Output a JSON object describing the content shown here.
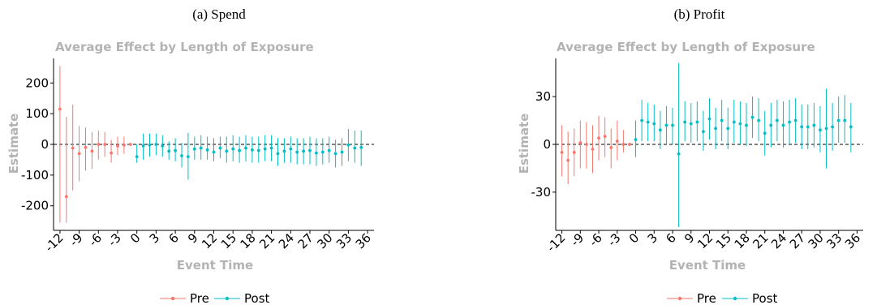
{
  "chart_data": [
    {
      "type": "scatter",
      "caption": "(a) Spend",
      "title": "Average Effect by Length of Exposure",
      "xlabel": "Event Time",
      "ylabel": "Estimate",
      "xlim": [
        -13,
        37
      ],
      "ylim": [
        -280,
        280
      ],
      "yticks": [
        200,
        100,
        0,
        -100,
        -200
      ],
      "xticks": [
        -12,
        -9,
        -6,
        -3,
        0,
        3,
        6,
        9,
        12,
        15,
        18,
        21,
        24,
        27,
        30,
        33,
        36
      ],
      "grid": false,
      "zero_line": "dashed",
      "legend": {
        "position": "bottom",
        "entries": [
          "Pre",
          "Post"
        ]
      },
      "series": [
        {
          "name": "Pre",
          "color": "#F8766D",
          "points": [
            {
              "x": -12,
              "y": 115,
              "lo": -255,
              "hi": 255
            },
            {
              "x": -11,
              "y": -170,
              "lo": -255,
              "hi": 90
            },
            {
              "x": -10,
              "y": -12,
              "lo": -150,
              "hi": 130
            },
            {
              "x": -9,
              "y": -30,
              "lo": -120,
              "hi": 60
            },
            {
              "x": -8,
              "y": -10,
              "lo": -85,
              "hi": 55
            },
            {
              "x": -7,
              "y": -22,
              "lo": -80,
              "hi": 40
            },
            {
              "x": -6,
              "y": 0,
              "lo": -50,
              "hi": 45
            },
            {
              "x": -5,
              "y": 0,
              "lo": -40,
              "hi": 40
            },
            {
              "x": -4,
              "y": -28,
              "lo": -60,
              "hi": 15
            },
            {
              "x": -3,
              "y": -5,
              "lo": -35,
              "hi": 25
            },
            {
              "x": -2,
              "y": -2,
              "lo": -30,
              "hi": 25
            },
            {
              "x": -1,
              "y": 0,
              "lo": -4,
              "hi": 4
            }
          ]
        },
        {
          "name": "Post",
          "color": "#00BFC4",
          "points": [
            {
              "x": 0,
              "y": -40,
              "lo": -60,
              "hi": 0
            },
            {
              "x": 1,
              "y": -5,
              "lo": -50,
              "hi": 35
            },
            {
              "x": 2,
              "y": -2,
              "lo": -40,
              "hi": 35
            },
            {
              "x": 3,
              "y": 0,
              "lo": -35,
              "hi": 35
            },
            {
              "x": 4,
              "y": -5,
              "lo": -40,
              "hi": 30
            },
            {
              "x": 5,
              "y": -22,
              "lo": -50,
              "hi": 10
            },
            {
              "x": 6,
              "y": -20,
              "lo": -55,
              "hi": 20
            },
            {
              "x": 7,
              "y": -37,
              "lo": -75,
              "hi": 5
            },
            {
              "x": 8,
              "y": -40,
              "lo": -115,
              "hi": 38
            },
            {
              "x": 9,
              "y": -15,
              "lo": -50,
              "hi": 25
            },
            {
              "x": 10,
              "y": -12,
              "lo": -50,
              "hi": 30
            },
            {
              "x": 11,
              "y": -18,
              "lo": -50,
              "hi": 25
            },
            {
              "x": 12,
              "y": -25,
              "lo": -55,
              "hi": 20
            },
            {
              "x": 13,
              "y": -12,
              "lo": -45,
              "hi": 25
            },
            {
              "x": 14,
              "y": -22,
              "lo": -60,
              "hi": 25
            },
            {
              "x": 15,
              "y": -15,
              "lo": -55,
              "hi": 30
            },
            {
              "x": 16,
              "y": -20,
              "lo": -60,
              "hi": 25
            },
            {
              "x": 17,
              "y": -12,
              "lo": -55,
              "hi": 30
            },
            {
              "x": 18,
              "y": -18,
              "lo": -60,
              "hi": 25
            },
            {
              "x": 19,
              "y": -20,
              "lo": -60,
              "hi": 25
            },
            {
              "x": 20,
              "y": -15,
              "lo": -55,
              "hi": 30
            },
            {
              "x": 21,
              "y": -12,
              "lo": -55,
              "hi": 30
            },
            {
              "x": 22,
              "y": -30,
              "lo": -70,
              "hi": 20
            },
            {
              "x": 23,
              "y": -22,
              "lo": -60,
              "hi": 20
            },
            {
              "x": 24,
              "y": -15,
              "lo": -60,
              "hi": 25
            },
            {
              "x": 25,
              "y": -25,
              "lo": -65,
              "hi": 20
            },
            {
              "x": 26,
              "y": -22,
              "lo": -65,
              "hi": 20
            },
            {
              "x": 27,
              "y": -20,
              "lo": -65,
              "hi": 25
            },
            {
              "x": 28,
              "y": -28,
              "lo": -70,
              "hi": 20
            },
            {
              "x": 29,
              "y": -25,
              "lo": -65,
              "hi": 20
            },
            {
              "x": 30,
              "y": -20,
              "lo": -60,
              "hi": 25
            },
            {
              "x": 31,
              "y": -30,
              "lo": -75,
              "hi": 15
            },
            {
              "x": 32,
              "y": -25,
              "lo": -70,
              "hi": 20
            },
            {
              "x": 33,
              "y": -2,
              "lo": -55,
              "hi": 50
            },
            {
              "x": 34,
              "y": -12,
              "lo": -60,
              "hi": 45
            },
            {
              "x": 35,
              "y": -10,
              "lo": -70,
              "hi": 45
            }
          ]
        }
      ]
    },
    {
      "type": "scatter",
      "caption": "(b) Profit",
      "title": "Average Effect by Length of Exposure",
      "xlabel": "Event Time",
      "ylabel": "Estimate",
      "xlim": [
        -13,
        37
      ],
      "ylim": [
        -54,
        54
      ],
      "yticks": [
        30,
        0,
        -30
      ],
      "xticks": [
        -12,
        -9,
        -6,
        -3,
        0,
        3,
        6,
        9,
        12,
        15,
        18,
        21,
        24,
        27,
        30,
        33,
        36
      ],
      "grid": false,
      "zero_line": "dashed",
      "legend": {
        "position": "bottom",
        "entries": [
          "Pre",
          "Post"
        ]
      },
      "series": [
        {
          "name": "Pre",
          "color": "#F8766D",
          "points": [
            {
              "x": -12,
              "y": -5,
              "lo": -20,
              "hi": 12
            },
            {
              "x": -11,
              "y": -10,
              "lo": -25,
              "hi": 8
            },
            {
              "x": -10,
              "y": -5,
              "lo": -20,
              "hi": 10
            },
            {
              "x": -9,
              "y": 1,
              "lo": -15,
              "hi": 15
            },
            {
              "x": -8,
              "y": 0,
              "lo": -15,
              "hi": 14
            },
            {
              "x": -7,
              "y": -3,
              "lo": -18,
              "hi": 12
            },
            {
              "x": -6,
              "y": 4,
              "lo": -10,
              "hi": 18
            },
            {
              "x": -5,
              "y": 5,
              "lo": -8,
              "hi": 17
            },
            {
              "x": -4,
              "y": -2,
              "lo": -15,
              "hi": 10
            },
            {
              "x": -3,
              "y": 2,
              "lo": -10,
              "hi": 15
            },
            {
              "x": -2,
              "y": 0,
              "lo": -5,
              "hi": 9
            },
            {
              "x": -1,
              "y": 0,
              "lo": -1,
              "hi": 1
            }
          ]
        },
        {
          "name": "Post",
          "color": "#00BFC4",
          "points": [
            {
              "x": 0,
              "y": 3,
              "lo": -8,
              "hi": 15
            },
            {
              "x": 1,
              "y": 15,
              "lo": 2,
              "hi": 28
            },
            {
              "x": 2,
              "y": 14,
              "lo": 2,
              "hi": 26
            },
            {
              "x": 3,
              "y": 13,
              "lo": 2,
              "hi": 25
            },
            {
              "x": 4,
              "y": 9,
              "lo": -3,
              "hi": 21
            },
            {
              "x": 5,
              "y": 12,
              "lo": 0,
              "hi": 24
            },
            {
              "x": 6,
              "y": 12,
              "lo": 0,
              "hi": 23
            },
            {
              "x": 7,
              "y": -6,
              "lo": -52,
              "hi": 51
            },
            {
              "x": 8,
              "y": 14,
              "lo": 2,
              "hi": 27
            },
            {
              "x": 9,
              "y": 13,
              "lo": 1,
              "hi": 26
            },
            {
              "x": 10,
              "y": 14,
              "lo": 2,
              "hi": 27
            },
            {
              "x": 11,
              "y": 8,
              "lo": -4,
              "hi": 21
            },
            {
              "x": 12,
              "y": 16,
              "lo": 3,
              "hi": 29
            },
            {
              "x": 13,
              "y": 10,
              "lo": -3,
              "hi": 23
            },
            {
              "x": 14,
              "y": 15,
              "lo": 2,
              "hi": 28
            },
            {
              "x": 15,
              "y": 10,
              "lo": -3,
              "hi": 23
            },
            {
              "x": 16,
              "y": 14,
              "lo": 1,
              "hi": 28
            },
            {
              "x": 17,
              "y": 13,
              "lo": 0,
              "hi": 27
            },
            {
              "x": 18,
              "y": 12,
              "lo": -1,
              "hi": 26
            },
            {
              "x": 19,
              "y": 17,
              "lo": 4,
              "hi": 30
            },
            {
              "x": 20,
              "y": 15,
              "lo": 2,
              "hi": 29
            },
            {
              "x": 21,
              "y": 7,
              "lo": -7,
              "hi": 21
            },
            {
              "x": 22,
              "y": 12,
              "lo": -2,
              "hi": 26
            },
            {
              "x": 23,
              "y": 15,
              "lo": 2,
              "hi": 28
            },
            {
              "x": 24,
              "y": 12,
              "lo": -2,
              "hi": 27
            },
            {
              "x": 25,
              "y": 14,
              "lo": 0,
              "hi": 28
            },
            {
              "x": 26,
              "y": 15,
              "lo": 1,
              "hi": 29
            },
            {
              "x": 27,
              "y": 11,
              "lo": -3,
              "hi": 25
            },
            {
              "x": 28,
              "y": 11,
              "lo": -3,
              "hi": 25
            },
            {
              "x": 29,
              "y": 12,
              "lo": -2,
              "hi": 26
            },
            {
              "x": 30,
              "y": 9,
              "lo": -5,
              "hi": 24
            },
            {
              "x": 31,
              "y": 10,
              "lo": -15,
              "hi": 35
            },
            {
              "x": 32,
              "y": 11,
              "lo": -4,
              "hi": 26
            },
            {
              "x": 33,
              "y": 15,
              "lo": 1,
              "hi": 30
            },
            {
              "x": 34,
              "y": 15,
              "lo": 1,
              "hi": 31
            },
            {
              "x": 35,
              "y": 11,
              "lo": -5,
              "hi": 26
            }
          ]
        }
      ]
    }
  ]
}
